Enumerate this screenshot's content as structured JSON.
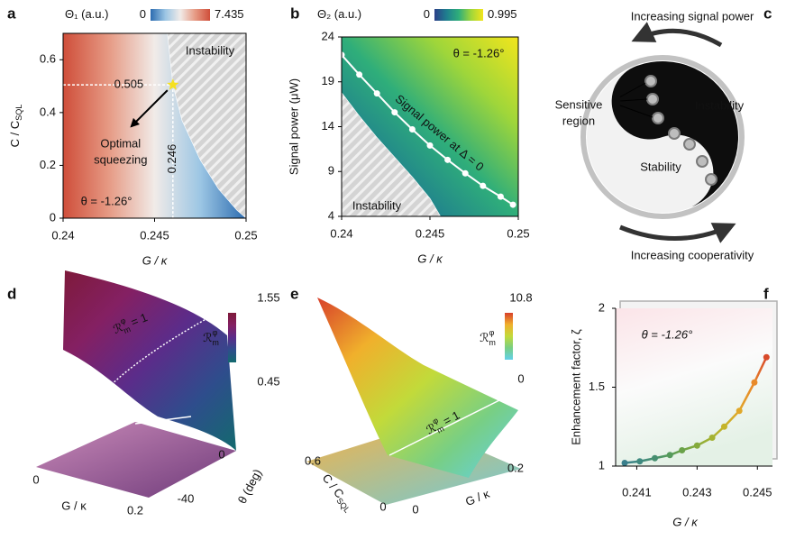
{
  "chart_data": [
    {
      "type": "heatmap",
      "panel": "a",
      "colorbar_label": "Θ₁ (a.u.)",
      "colorbar_ticks": [
        0,
        7.435
      ],
      "colormap": [
        "#2c6cb0",
        "#9cc6e4",
        "#f1ebe8",
        "#e69a84",
        "#cf4e3a"
      ],
      "xlabel": "G / κ",
      "ylabel": {
        "text": "C / C",
        "sub": "SQL"
      },
      "xlim": [
        0.24,
        0.25
      ],
      "xticks": [
        0.24,
        0.245,
        0.25
      ],
      "ylim": [
        0,
        0.7
      ],
      "yticks": [
        0,
        0.2,
        0.4,
        0.6
      ],
      "region": {
        "label": "Instability",
        "x": [
          0.2457,
          0.246,
          0.2465,
          0.2475,
          0.2485,
          0.2495,
          0.25
        ],
        "y": [
          0.7,
          0.505,
          0.37,
          0.22,
          0.11,
          0.03,
          0
        ]
      },
      "optimum": {
        "x": 0.246,
        "y": 0.505,
        "label": [
          "Optimal",
          "squeezing"
        ],
        "color": "#f5e020"
      },
      "annotation": "θ = -1.26°"
    },
    {
      "type": "heatmap",
      "panel": "b",
      "colorbar_label": "Θ₂ (a.u.)",
      "colorbar_ticks": [
        0,
        0.995
      ],
      "colormap": [
        "#2b3f88",
        "#1f7f8e",
        "#2fae7a",
        "#9fd63a",
        "#f2e51c"
      ],
      "xlabel": "G / κ",
      "ylabel": "Signal power (μW)",
      "xlim": [
        0.24,
        0.25
      ],
      "xticks": [
        0.24,
        0.245,
        0.25
      ],
      "ylim": [
        4,
        24
      ],
      "yticks": [
        4,
        9,
        14,
        19,
        24
      ],
      "region": {
        "label": "Instability",
        "x": [
          0.24,
          0.241,
          0.242,
          0.243,
          0.244,
          0.245,
          0.2456
        ],
        "y": [
          17.8,
          15.2,
          12.8,
          10.6,
          8.4,
          6.0,
          4
        ]
      },
      "curve": {
        "name": "Signal power at Δ = 0",
        "color": "#ffffff",
        "x": [
          0.24,
          0.241,
          0.242,
          0.243,
          0.244,
          0.245,
          0.246,
          0.247,
          0.248,
          0.249,
          0.2497
        ],
        "y": [
          22,
          19.8,
          17.7,
          15.6,
          13.7,
          11.9,
          10.3,
          8.8,
          7.4,
          6.2,
          5.3
        ]
      },
      "annotation": "θ = -1.26°"
    },
    {
      "type": "diagram",
      "panel": "c",
      "top_label": "Increasing signal power",
      "bottom_label": "Increasing cooperativity",
      "callout": [
        "Sensitive",
        "region"
      ],
      "regions": [
        "Instability",
        "Stability"
      ]
    },
    {
      "type": "surface",
      "panel": "d",
      "colorbar_label": {
        "base": "ℛ",
        "sup": "φ",
        "sub": "m"
      },
      "colorbar_ticks": [
        0.45,
        1.55
      ],
      "colormap": [
        "#136a6e",
        "#2e4d8c",
        "#5b2c8a",
        "#842063",
        "#7e1a3a"
      ],
      "xlabel": "G / κ",
      "xticks": [
        0,
        0.2
      ],
      "ylabel": "θ (deg)",
      "yticks": [
        0,
        -40
      ],
      "annotation": {
        "base": "ℛ",
        "sup": "φ",
        "sub": "m",
        "rest": " = 1"
      }
    },
    {
      "type": "surface",
      "panel": "e",
      "colorbar_label": {
        "base": "ℛ",
        "sup": "φ",
        "sub": "m"
      },
      "colorbar_ticks": [
        0,
        10.8
      ],
      "colormap": [
        "#62d0ea",
        "#78cf84",
        "#c2da3a",
        "#f0b02c",
        "#d8402a"
      ],
      "xlabel": {
        "text": "C / C",
        "sub": "SQL"
      },
      "xticks": [
        0.6,
        0
      ],
      "ylabel": "G / κ",
      "yticks": [
        0,
        0.2
      ],
      "annotation": {
        "base": "ℛ",
        "sup": "φ",
        "sub": "m",
        "rest": " = 1"
      }
    },
    {
      "type": "line",
      "panel": "f",
      "xlabel": "G / κ",
      "ylabel": "Enhancement factor, ζ",
      "xlim": [
        0.2403,
        0.2455
      ],
      "xticks": [
        0.241,
        0.243,
        0.245
      ],
      "ylim": [
        1,
        2
      ],
      "yticks": [
        1,
        1.5,
        2
      ],
      "x": [
        0.2406,
        0.2411,
        0.2416,
        0.2421,
        0.2425,
        0.243,
        0.2435,
        0.2439,
        0.2444,
        0.2449,
        0.2453
      ],
      "values": [
        1.02,
        1.03,
        1.05,
        1.07,
        1.1,
        1.13,
        1.18,
        1.25,
        1.35,
        1.53,
        1.69
      ],
      "colors": [
        "#3a7f8c",
        "#3f8a80",
        "#468f70",
        "#559a5c",
        "#6aa24a",
        "#84aa3c",
        "#a3b232",
        "#c4b42a",
        "#e0a82a",
        "#e88a2a",
        "#d84a2a"
      ],
      "annotation": "θ = -1.26°"
    }
  ]
}
